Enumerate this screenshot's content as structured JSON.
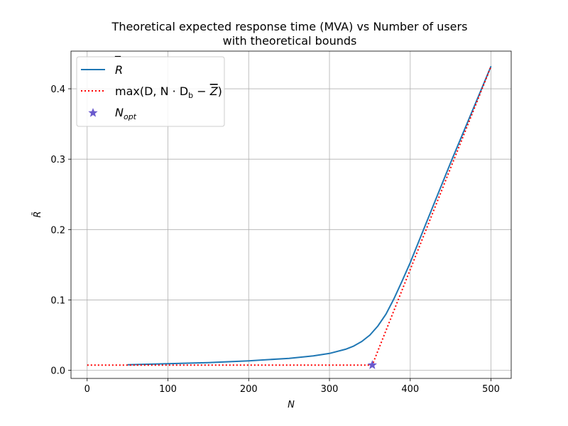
{
  "chart_data": {
    "type": "line",
    "title": "Theoretical expected response time (MVA) vs Number of users",
    "subtitle": "with theoretical bounds",
    "xlabel": "N",
    "ylabel": "R̄",
    "xlim": [
      -20,
      525
    ],
    "ylim": [
      -0.0115,
      0.4535
    ],
    "x_ticks": [
      0,
      100,
      200,
      300,
      400,
      500
    ],
    "y_ticks": [
      0.0,
      0.1,
      0.2,
      0.3,
      0.4
    ],
    "x_tick_labels": [
      "0",
      "100",
      "200",
      "300",
      "400",
      "500"
    ],
    "y_tick_labels": [
      "0.0",
      "0.1",
      "0.2",
      "0.3",
      "0.4"
    ],
    "grid": true,
    "legend_position": "top-left",
    "series": [
      {
        "name": "R̄",
        "style": "solid",
        "color": "#1f77b4",
        "x": [
          50,
          100,
          150,
          200,
          250,
          280,
          300,
          320,
          330,
          340,
          350,
          360,
          370,
          380,
          390,
          400,
          420,
          450,
          480,
          500
        ],
        "y": [
          0.008,
          0.0095,
          0.011,
          0.0135,
          0.017,
          0.0205,
          0.024,
          0.03,
          0.0345,
          0.041,
          0.05,
          0.063,
          0.08,
          0.102,
          0.127,
          0.153,
          0.21,
          0.295,
          0.377,
          0.432
        ]
      },
      {
        "name": "max(D, N·D_b − Z̄)",
        "style": "dotted",
        "color": "#ff0000",
        "x": [
          0,
          353,
          500
        ],
        "y": [
          0.0075,
          0.0075,
          0.432
        ]
      },
      {
        "name": "N_opt",
        "style": "marker-star",
        "color": "#6a5acd",
        "x": [
          353
        ],
        "y": [
          0.0075
        ]
      }
    ]
  },
  "legend": {
    "entry_r": {
      "main": "R",
      "bar": "‾"
    },
    "entry_bound": {
      "pre": "max(D, N · D",
      "sub_b": "b",
      "mid": " − ",
      "z": "Z",
      "post": ")"
    },
    "entry_nopt": {
      "main": "N",
      "sub": "opt"
    }
  }
}
